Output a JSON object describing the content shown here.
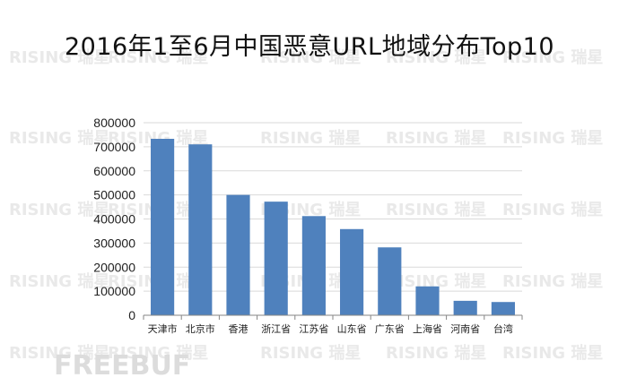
{
  "chart_data": {
    "type": "bar",
    "title": "2016年1至6月中国恶意URL地域分布Top10",
    "categories": [
      "天津市",
      "北京市",
      "香港",
      "浙江省",
      "江苏省",
      "山东省",
      "广东省",
      "上海省",
      "河南省",
      "台湾"
    ],
    "values": [
      733000,
      710000,
      500000,
      472000,
      412000,
      358000,
      282000,
      120000,
      60000,
      55000
    ],
    "ylim": [
      0,
      800000
    ],
    "yticks": [
      "0",
      "100000",
      "200000",
      "300000",
      "400000",
      "500000",
      "600000",
      "700000",
      "800000"
    ],
    "grid": true,
    "legend": "none",
    "colors": {
      "bar": "#4f81bd",
      "grid": "#d9d9d9",
      "axis": "#868686"
    }
  },
  "watermark": {
    "text": "RISING 瑞星",
    "logo": "FREEBUF"
  }
}
